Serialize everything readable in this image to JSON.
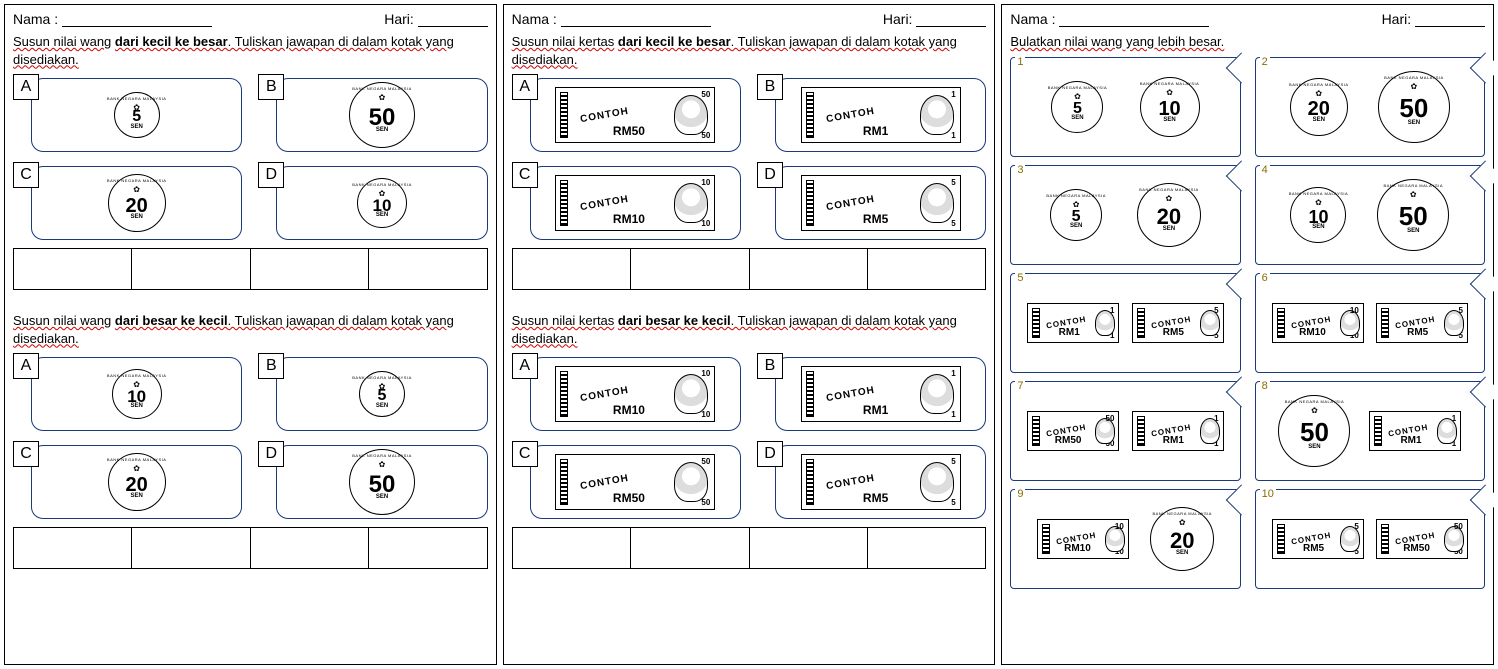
{
  "labels": {
    "nama": "Nama :",
    "hari": "Hari:"
  },
  "bank_text": "BANK NEGARA MALAYSIA",
  "contoh": "CONTOH",
  "sen": "SEN",
  "rm_prefix": "RM",
  "colors": {
    "card_border": "#1a3a7a",
    "wavy": "#d00000",
    "qnum": "#8a6d00"
  },
  "page1": {
    "sec1": {
      "instr_pre": "Susun nilai wang",
      "instr_bold": "dari  kecil ke besar",
      "instr_post": ". Tuliskan jawapan di dalam kotak yang disediakan.",
      "opts": [
        {
          "letter": "A",
          "type": "coin",
          "value": "5",
          "size": 46,
          "font": 16
        },
        {
          "letter": "B",
          "type": "coin",
          "value": "50",
          "size": 66,
          "font": 24
        },
        {
          "letter": "C",
          "type": "coin",
          "value": "20",
          "size": 58,
          "font": 20
        },
        {
          "letter": "D",
          "type": "coin",
          "value": "10",
          "size": 50,
          "font": 17
        }
      ]
    },
    "sec2": {
      "instr_pre": "Susun nilai wang",
      "instr_bold": "dari  besar ke kecil",
      "instr_post": ". Tuliskan jawapan di dalam kotak yang disediakan.",
      "opts": [
        {
          "letter": "A",
          "type": "coin",
          "value": "10",
          "size": 50,
          "font": 17
        },
        {
          "letter": "B",
          "type": "coin",
          "value": "5",
          "size": 46,
          "font": 16
        },
        {
          "letter": "C",
          "type": "coin",
          "value": "20",
          "size": 58,
          "font": 20
        },
        {
          "letter": "D",
          "type": "coin",
          "value": "50",
          "size": 66,
          "font": 24
        }
      ]
    }
  },
  "page2": {
    "sec1": {
      "instr_pre": "Susun nilai kertas",
      "instr_bold": "dari  kecil ke besar",
      "instr_post": ". Tuliskan jawapan di dalam kotak yang disediakan.",
      "opts": [
        {
          "letter": "A",
          "type": "note",
          "value": "50"
        },
        {
          "letter": "B",
          "type": "note",
          "value": "1"
        },
        {
          "letter": "C",
          "type": "note",
          "value": "10"
        },
        {
          "letter": "D",
          "type": "note",
          "value": "5"
        }
      ]
    },
    "sec2": {
      "instr_pre": "Susun nilai kertas",
      "instr_bold": "dari  besar ke kecil",
      "instr_post": ". Tuliskan jawapan di dalam kotak yang disediakan.",
      "opts": [
        {
          "letter": "A",
          "type": "note",
          "value": "10"
        },
        {
          "letter": "B",
          "type": "note",
          "value": "1"
        },
        {
          "letter": "C",
          "type": "note",
          "value": "50"
        },
        {
          "letter": "D",
          "type": "note",
          "value": "5"
        }
      ]
    }
  },
  "page3": {
    "instr": "Bulatkan nilai wang yang lebih besar.",
    "questions": [
      {
        "n": "1",
        "a": {
          "type": "coin",
          "value": "5",
          "size": 52,
          "font": 16
        },
        "b": {
          "type": "coin",
          "value": "10",
          "size": 60,
          "font": 20
        }
      },
      {
        "n": "2",
        "a": {
          "type": "coin",
          "value": "20",
          "size": 58,
          "font": 20
        },
        "b": {
          "type": "coin",
          "value": "50",
          "size": 72,
          "font": 26
        }
      },
      {
        "n": "3",
        "a": {
          "type": "coin",
          "value": "5",
          "size": 52,
          "font": 16
        },
        "b": {
          "type": "coin",
          "value": "20",
          "size": 64,
          "font": 22
        }
      },
      {
        "n": "4",
        "a": {
          "type": "coin",
          "value": "10",
          "size": 56,
          "font": 18
        },
        "b": {
          "type": "coin",
          "value": "50",
          "size": 72,
          "font": 26
        }
      },
      {
        "n": "5",
        "a": {
          "type": "note",
          "value": "1",
          "cls": "xs"
        },
        "b": {
          "type": "note",
          "value": "5",
          "cls": "xs"
        }
      },
      {
        "n": "6",
        "a": {
          "type": "note",
          "value": "10",
          "cls": "xs"
        },
        "b": {
          "type": "note",
          "value": "5",
          "cls": "xs"
        }
      },
      {
        "n": "7",
        "a": {
          "type": "note",
          "value": "50",
          "cls": "xs"
        },
        "b": {
          "type": "note",
          "value": "1",
          "cls": "xs"
        }
      },
      {
        "n": "8",
        "a": {
          "type": "coin",
          "value": "50",
          "size": 72,
          "font": 26
        },
        "b": {
          "type": "note",
          "value": "1",
          "cls": "xs"
        }
      },
      {
        "n": "9",
        "a": {
          "type": "note",
          "value": "10",
          "cls": "xs"
        },
        "b": {
          "type": "coin",
          "value": "20",
          "size": 64,
          "font": 22
        }
      },
      {
        "n": "10",
        "a": {
          "type": "note",
          "value": "5",
          "cls": "xs"
        },
        "b": {
          "type": "note",
          "value": "50",
          "cls": "xs"
        }
      }
    ]
  }
}
